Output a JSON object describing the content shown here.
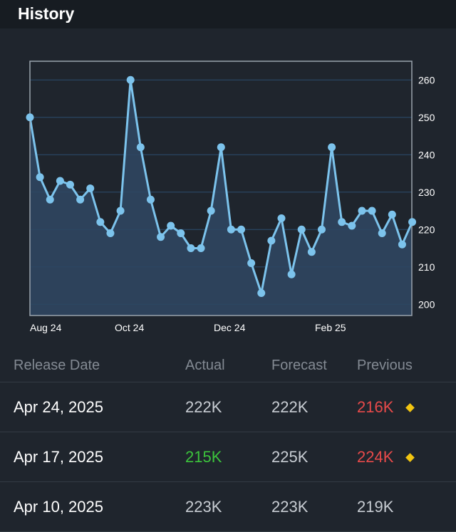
{
  "header": {
    "title": "History"
  },
  "colors": {
    "line": "#7cc3ec",
    "area": "#2f4460",
    "grid": "#2c4a66",
    "positive": "#3cc43c",
    "negative": "#e84a4a",
    "neutral": "#c8cdd3",
    "revision_marker": "#f2c511"
  },
  "chart_data": {
    "type": "area",
    "title": "",
    "xlabel": "",
    "ylabel": "",
    "ylim": [
      197,
      265
    ],
    "yticks": [
      200,
      210,
      220,
      230,
      240,
      250,
      260
    ],
    "x_tick_labels": [
      "Aug 24",
      "Oct 24",
      "Dec 24",
      "Feb 25"
    ],
    "values": [
      250,
      234,
      228,
      233,
      232,
      228,
      231,
      222,
      219,
      225,
      260,
      242,
      228,
      218,
      221,
      219,
      215,
      215,
      225,
      242,
      220,
      220,
      211,
      203,
      217,
      223,
      208,
      220,
      214,
      220,
      242,
      222,
      221,
      225,
      225,
      219,
      224,
      216,
      222
    ],
    "grid": true
  },
  "table": {
    "headers": [
      "Release Date",
      "Actual",
      "Forecast",
      "Previous"
    ],
    "rows": [
      {
        "date": "Apr 24, 2025",
        "actual": "222K",
        "actual_status": "neutral",
        "forecast": "222K",
        "previous": "216K",
        "previous_status": "negative",
        "revised": true
      },
      {
        "date": "Apr 17, 2025",
        "actual": "215K",
        "actual_status": "positive",
        "forecast": "225K",
        "previous": "224K",
        "previous_status": "negative",
        "revised": true
      },
      {
        "date": "Apr 10, 2025",
        "actual": "223K",
        "actual_status": "neutral",
        "forecast": "223K",
        "previous": "219K",
        "previous_status": "neutral",
        "revised": false
      }
    ]
  }
}
